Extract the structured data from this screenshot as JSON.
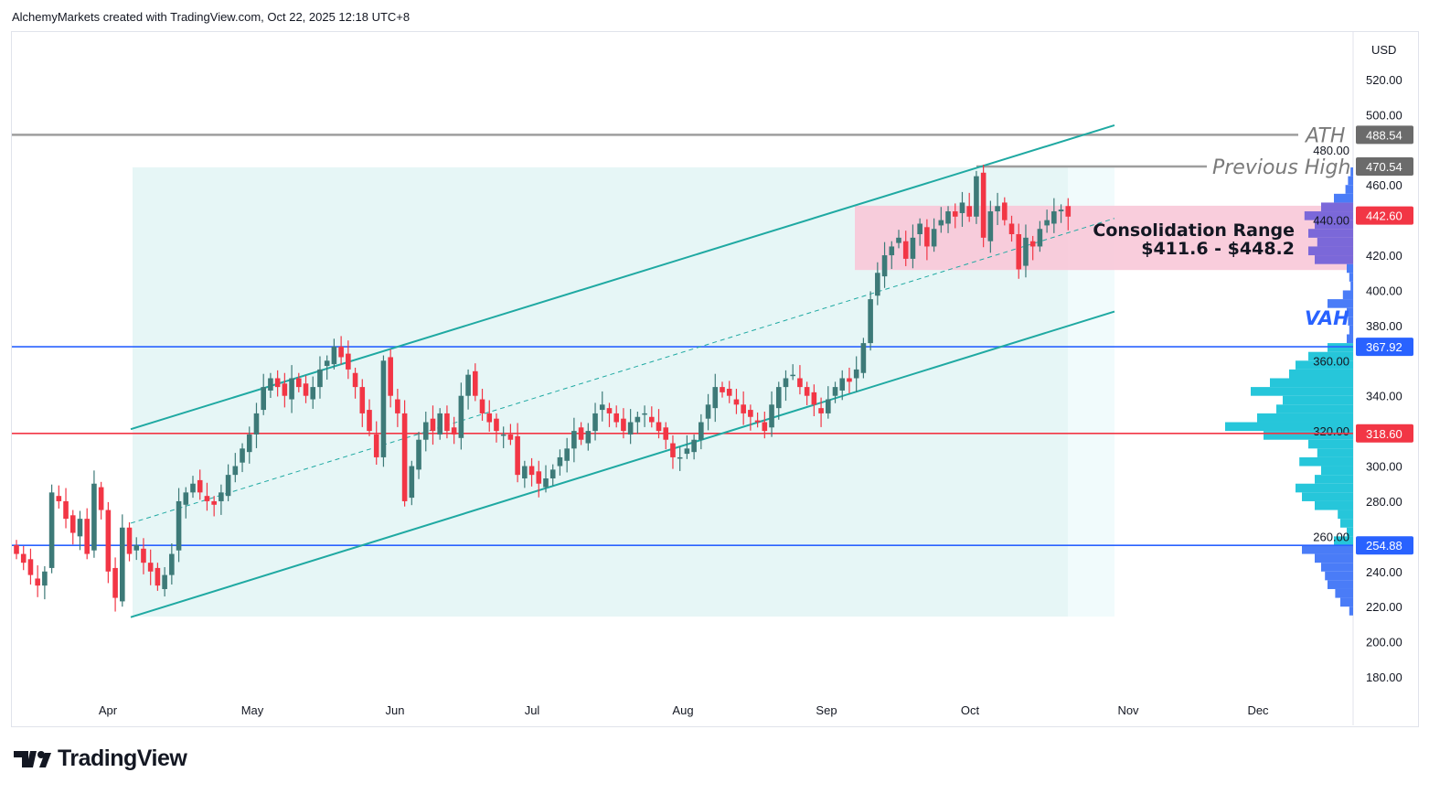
{
  "header": "AlchemyMarkets created with TradingView.com, Oct 22, 2025 12:18 UTC+8",
  "logo_text": "TradingView",
  "chart_data": {
    "type": "candlestick",
    "currency": "USD",
    "ylim": [
      170,
      530
    ],
    "y_ticks": [
      180,
      200,
      220,
      240,
      260,
      280,
      300,
      320,
      340,
      360,
      380,
      400,
      420,
      440,
      460,
      480,
      500,
      520
    ],
    "x_ticks": [
      "Apr",
      "May",
      "Jun",
      "Jul",
      "Aug",
      "Sep",
      "Oct",
      "Nov",
      "Dec"
    ],
    "closes": [
      250,
      245,
      238,
      232,
      240,
      285,
      280,
      270,
      262,
      270,
      250,
      290,
      275,
      240,
      225,
      265,
      250,
      255,
      245,
      240,
      232,
      238,
      250,
      280,
      285,
      290,
      285,
      280,
      278,
      285,
      295,
      300,
      310,
      318,
      330,
      345,
      350,
      345,
      340,
      350,
      345,
      340,
      345,
      355,
      360,
      368,
      362,
      355,
      345,
      330,
      320,
      305,
      360,
      340,
      330,
      280,
      300,
      315,
      325,
      320,
      330,
      320,
      318,
      340,
      352,
      340,
      330,
      325,
      320,
      318,
      315,
      295,
      300,
      295,
      290,
      293,
      298,
      305,
      310,
      320,
      315,
      320,
      330,
      335,
      330,
      325,
      320,
      325,
      328,
      330,
      325,
      320,
      315,
      305,
      305,
      310,
      315,
      325,
      335,
      345,
      342,
      340,
      335,
      330,
      328,
      325,
      320,
      335,
      345,
      350,
      352,
      345,
      340,
      335,
      330,
      338,
      345,
      350,
      348,
      355,
      370,
      395,
      410,
      420,
      425,
      430,
      418,
      430,
      438,
      425,
      435,
      440,
      445,
      442,
      450,
      442,
      465,
      430,
      445,
      448,
      440,
      432,
      412,
      430,
      425,
      435,
      440,
      445,
      446,
      442
    ],
    "channel": {
      "upper": [
        321,
        494
      ],
      "lower": [
        214,
        388
      ]
    },
    "levels": [
      {
        "label": "ATH",
        "price": "488.54",
        "value": 488.54,
        "color": "#9e9e9e",
        "tag": "#6b6b6b"
      },
      {
        "label": "Previous High",
        "price": "470.54",
        "value": 470.54,
        "color": "#9e9e9e",
        "tag": "#6b6b6b"
      },
      {
        "label": "",
        "price": "367.92",
        "value": 367.92,
        "color": "#2962ff",
        "tag": "#2962ff"
      },
      {
        "label": "",
        "price": "318.60",
        "value": 318.6,
        "color": "#f23645",
        "tag": "#f23645"
      },
      {
        "label": "",
        "price": "254.88",
        "value": 254.88,
        "color": "#2962ff",
        "tag": "#2962ff"
      }
    ],
    "last_price": {
      "price": "442.60",
      "value": 442.6,
      "color": "#f23645"
    },
    "consolidation": {
      "title": "Consolidation Range",
      "range": "$411.6 - $448.2",
      "low": 411.6,
      "high": 448.2
    },
    "vah_label": "VAH",
    "volume_profile": [
      [
        215,
        0.03
      ],
      [
        220,
        0.1
      ],
      [
        225,
        0.14
      ],
      [
        230,
        0.2
      ],
      [
        235,
        0.22
      ],
      [
        240,
        0.25
      ],
      [
        245,
        0.3
      ],
      [
        250,
        0.4
      ],
      [
        255,
        0.15
      ],
      [
        260,
        0.05
      ],
      [
        265,
        0.1
      ],
      [
        270,
        0.12
      ],
      [
        275,
        0.3
      ],
      [
        280,
        0.4
      ],
      [
        285,
        0.45
      ],
      [
        290,
        0.3
      ],
      [
        295,
        0.25
      ],
      [
        300,
        0.42
      ],
      [
        305,
        0.28
      ],
      [
        310,
        0.35
      ],
      [
        315,
        0.7
      ],
      [
        320,
        1.0
      ],
      [
        325,
        0.75
      ],
      [
        330,
        0.6
      ],
      [
        335,
        0.55
      ],
      [
        340,
        0.8
      ],
      [
        345,
        0.65
      ],
      [
        350,
        0.5
      ],
      [
        355,
        0.45
      ],
      [
        360,
        0.35
      ],
      [
        365,
        0.2
      ],
      [
        370,
        0.05
      ],
      [
        375,
        0.03
      ],
      [
        380,
        0.04
      ],
      [
        385,
        0.05
      ],
      [
        390,
        0.2
      ],
      [
        395,
        0.08
      ],
      [
        400,
        0.02
      ],
      [
        405,
        0.03
      ],
      [
        410,
        0.05
      ],
      [
        415,
        0.3
      ],
      [
        420,
        0.35
      ],
      [
        425,
        0.28
      ],
      [
        430,
        0.35
      ],
      [
        435,
        0.3
      ],
      [
        440,
        0.38
      ],
      [
        445,
        0.25
      ],
      [
        450,
        0.15
      ],
      [
        455,
        0.06
      ],
      [
        460,
        0.04
      ],
      [
        465,
        0.02
      ]
    ]
  }
}
